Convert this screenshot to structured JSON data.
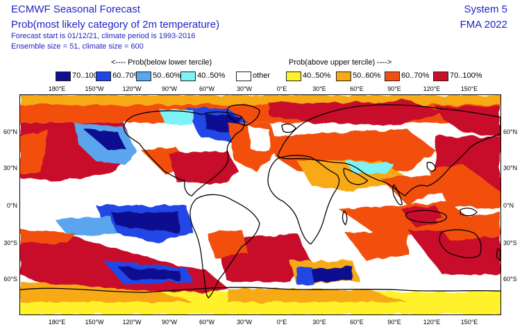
{
  "header": {
    "title": "ECMWF Seasonal Forecast",
    "subtitle": "Prob(most likely category of 2m temperature)",
    "forecast_info": "Forecast start is 01/12/21, climate period is 1993-2016",
    "ensemble_info": "Ensemble size = 51, climate size = 600",
    "system": "System 5",
    "period": "FMA 2022",
    "text_color": "#1f23c8"
  },
  "legend": {
    "below_caption": "<---- Prob(below lower tercile)",
    "above_caption": "Prob(above upper tercile) ---->",
    "items": [
      {
        "label": "70..100%",
        "color": "#0d118f"
      },
      {
        "label": "60..70%",
        "color": "#2146e6"
      },
      {
        "label": "50..60%",
        "color": "#5aa5ee"
      },
      {
        "label": "40..50%",
        "color": "#7df2f7"
      },
      {
        "label": "other",
        "color": "#ffffff"
      },
      {
        "label": "40..50%",
        "color": "#fff22a"
      },
      {
        "label": "50..60%",
        "color": "#f8aa14"
      },
      {
        "label": "60..70%",
        "color": "#f25010"
      },
      {
        "label": "70..100%",
        "color": "#c8102a"
      }
    ]
  },
  "axes": {
    "lon_labels": [
      "180°E",
      "150°W",
      "120°W",
      "90°W",
      "60°W",
      "30°W",
      "0°E",
      "30°E",
      "60°E",
      "90°E",
      "120°E",
      "150°E"
    ],
    "lat_labels": [
      "60°N",
      "30°N",
      "0°N",
      "30°S",
      "60°S"
    ]
  },
  "map": {
    "projection": "equirectangular",
    "land_outline_color": "#000000"
  }
}
